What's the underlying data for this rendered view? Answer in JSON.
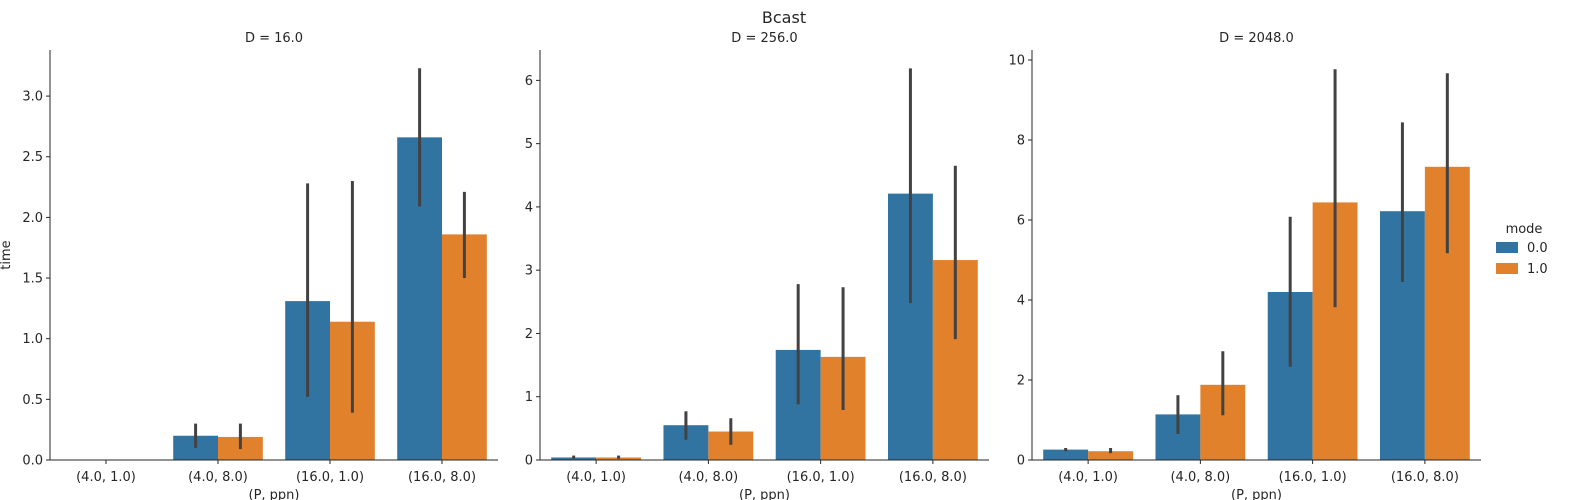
{
  "chart_data": {
    "type": "bar",
    "title": "Bcast",
    "xlabel": "(P, ppn)",
    "ylabel": "time",
    "legend": {
      "title": "mode",
      "placement": "right",
      "entries": [
        "0.0",
        "1.0"
      ]
    },
    "colors": {
      "0.0": "#3274a1",
      "1.0": "#e1812c",
      "errorbar": "#424242",
      "axis": "#262626"
    },
    "grid": false,
    "categories": [
      "(4.0, 1.0)",
      "(4.0, 8.0)",
      "(16.0, 1.0)",
      "(16.0, 8.0)"
    ],
    "panels": [
      {
        "title": "D = 16.0",
        "ylim": [
          0,
          3.38
        ],
        "yticks": [
          "0.0",
          "0.5",
          "1.0",
          "1.5",
          "2.0",
          "2.5",
          "3.0"
        ],
        "series": [
          {
            "name": "0.0",
            "values": [
              0.0,
              0.2,
              1.31,
              2.66
            ],
            "err_low": [
              0.0,
              0.1,
              0.52,
              2.09
            ],
            "err_high": [
              0.0,
              0.3,
              2.28,
              3.23
            ]
          },
          {
            "name": "1.0",
            "values": [
              0.0,
              0.19,
              1.14,
              1.86
            ],
            "err_low": [
              0.0,
              0.09,
              0.39,
              1.5
            ],
            "err_high": [
              0.0,
              0.3,
              2.3,
              2.21
            ]
          }
        ]
      },
      {
        "title": "D = 256.0",
        "ylim": [
          0,
          6.48
        ],
        "yticks": [
          "0",
          "1",
          "2",
          "3",
          "4",
          "5",
          "6"
        ],
        "series": [
          {
            "name": "0.0",
            "values": [
              0.04,
              0.55,
              1.74,
              4.21
            ],
            "err_low": [
              0.02,
              0.32,
              0.88,
              2.48
            ],
            "err_high": [
              0.07,
              0.77,
              2.78,
              6.19
            ]
          },
          {
            "name": "1.0",
            "values": [
              0.04,
              0.45,
              1.63,
              3.16
            ],
            "err_low": [
              0.02,
              0.24,
              0.79,
              1.91
            ],
            "err_high": [
              0.07,
              0.66,
              2.73,
              4.65
            ]
          }
        ]
      },
      {
        "title": "D = 2048.0",
        "ylim": [
          0,
          10.25
        ],
        "yticks": [
          "0",
          "2",
          "4",
          "6",
          "8",
          "10"
        ],
        "series": [
          {
            "name": "0.0",
            "values": [
              0.26,
              1.14,
              4.2,
              6.22
            ],
            "err_low": [
              0.22,
              0.65,
              2.33,
              4.45
            ],
            "err_high": [
              0.3,
              1.62,
              6.08,
              8.44
            ]
          },
          {
            "name": "1.0",
            "values": [
              0.22,
              1.88,
              6.44,
              7.33
            ],
            "err_low": [
              0.17,
              1.12,
              3.82,
              5.17
            ],
            "err_high": [
              0.3,
              2.72,
              9.77,
              9.67
            ]
          }
        ]
      }
    ]
  }
}
